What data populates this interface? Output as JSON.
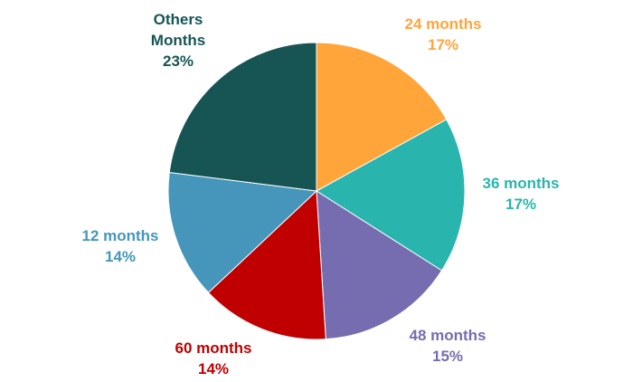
{
  "chart_data": {
    "type": "pie",
    "title": "",
    "start_angle_deg": 0,
    "direction": "clockwise",
    "slices": [
      {
        "label": "24 months",
        "line1": "24 months",
        "line2": "17%",
        "value": 17,
        "percent_label": "17%",
        "color": "#FFA53A",
        "label_color": "#FFA53A"
      },
      {
        "label": "36 months",
        "line1": "36 months",
        "line2": "17%",
        "value": 17,
        "percent_label": "17%",
        "color": "#29B5AE",
        "label_color": "#29B5AE"
      },
      {
        "label": "48 months",
        "line1": "48 months",
        "line2": "15%",
        "value": 15,
        "percent_label": "15%",
        "color": "#766DB0",
        "label_color": "#766DB0"
      },
      {
        "label": "60 months",
        "line1": "60 months",
        "line2": "14%",
        "value": 14,
        "percent_label": "14%",
        "color": "#C00000",
        "label_color": "#C00000"
      },
      {
        "label": "12 months",
        "line1": "12 months",
        "line2": "14%",
        "value": 14,
        "percent_label": "14%",
        "color": "#4596BA",
        "label_color": "#4596BA"
      },
      {
        "label": "Others Months",
        "line1": "Others",
        "line2": "Months",
        "line3": "23%",
        "value": 23,
        "percent_label": "23%",
        "color": "#175554",
        "label_color": "#175554"
      }
    ],
    "legend": "none"
  }
}
